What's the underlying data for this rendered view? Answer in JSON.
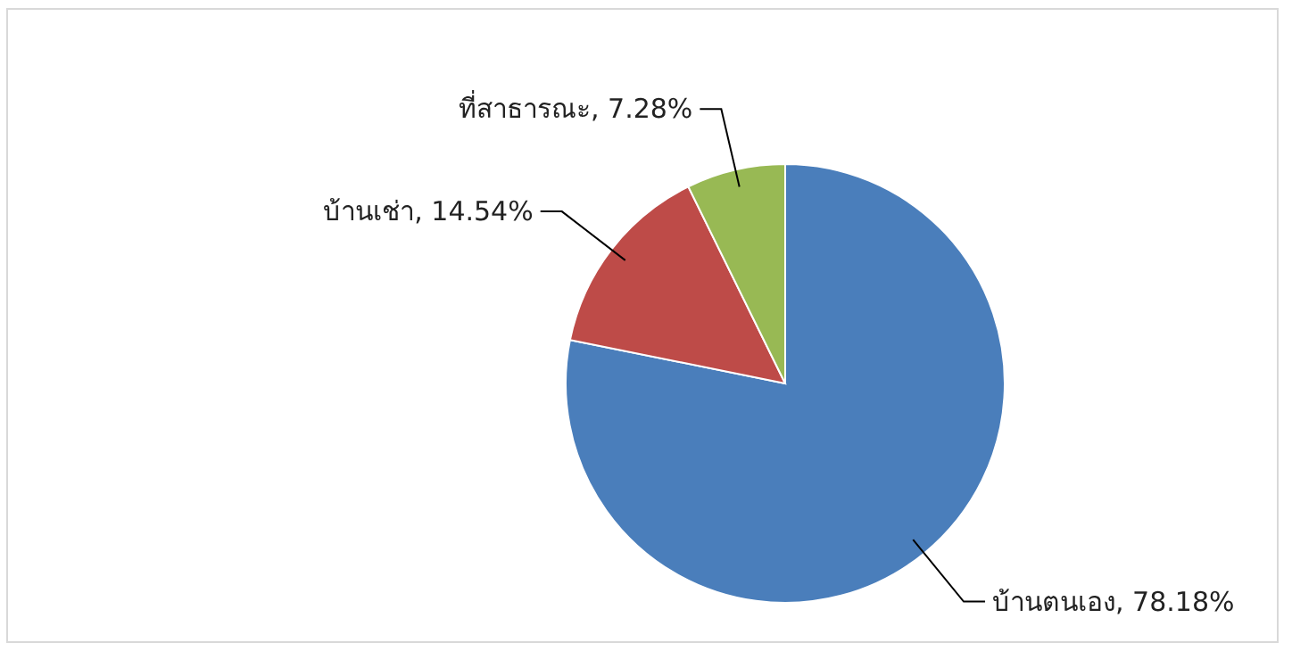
{
  "chart_data": {
    "type": "pie",
    "categories": [
      "บ้านตนเอง",
      "บ้านเช่า",
      "ที่สาธารณะ"
    ],
    "values": [
      78.18,
      14.54,
      7.28
    ],
    "value_labels": [
      "78.18%",
      "14.54%",
      "7.28%"
    ],
    "colors": [
      "#4a7ebb",
      "#be4b48",
      "#98b954"
    ]
  }
}
